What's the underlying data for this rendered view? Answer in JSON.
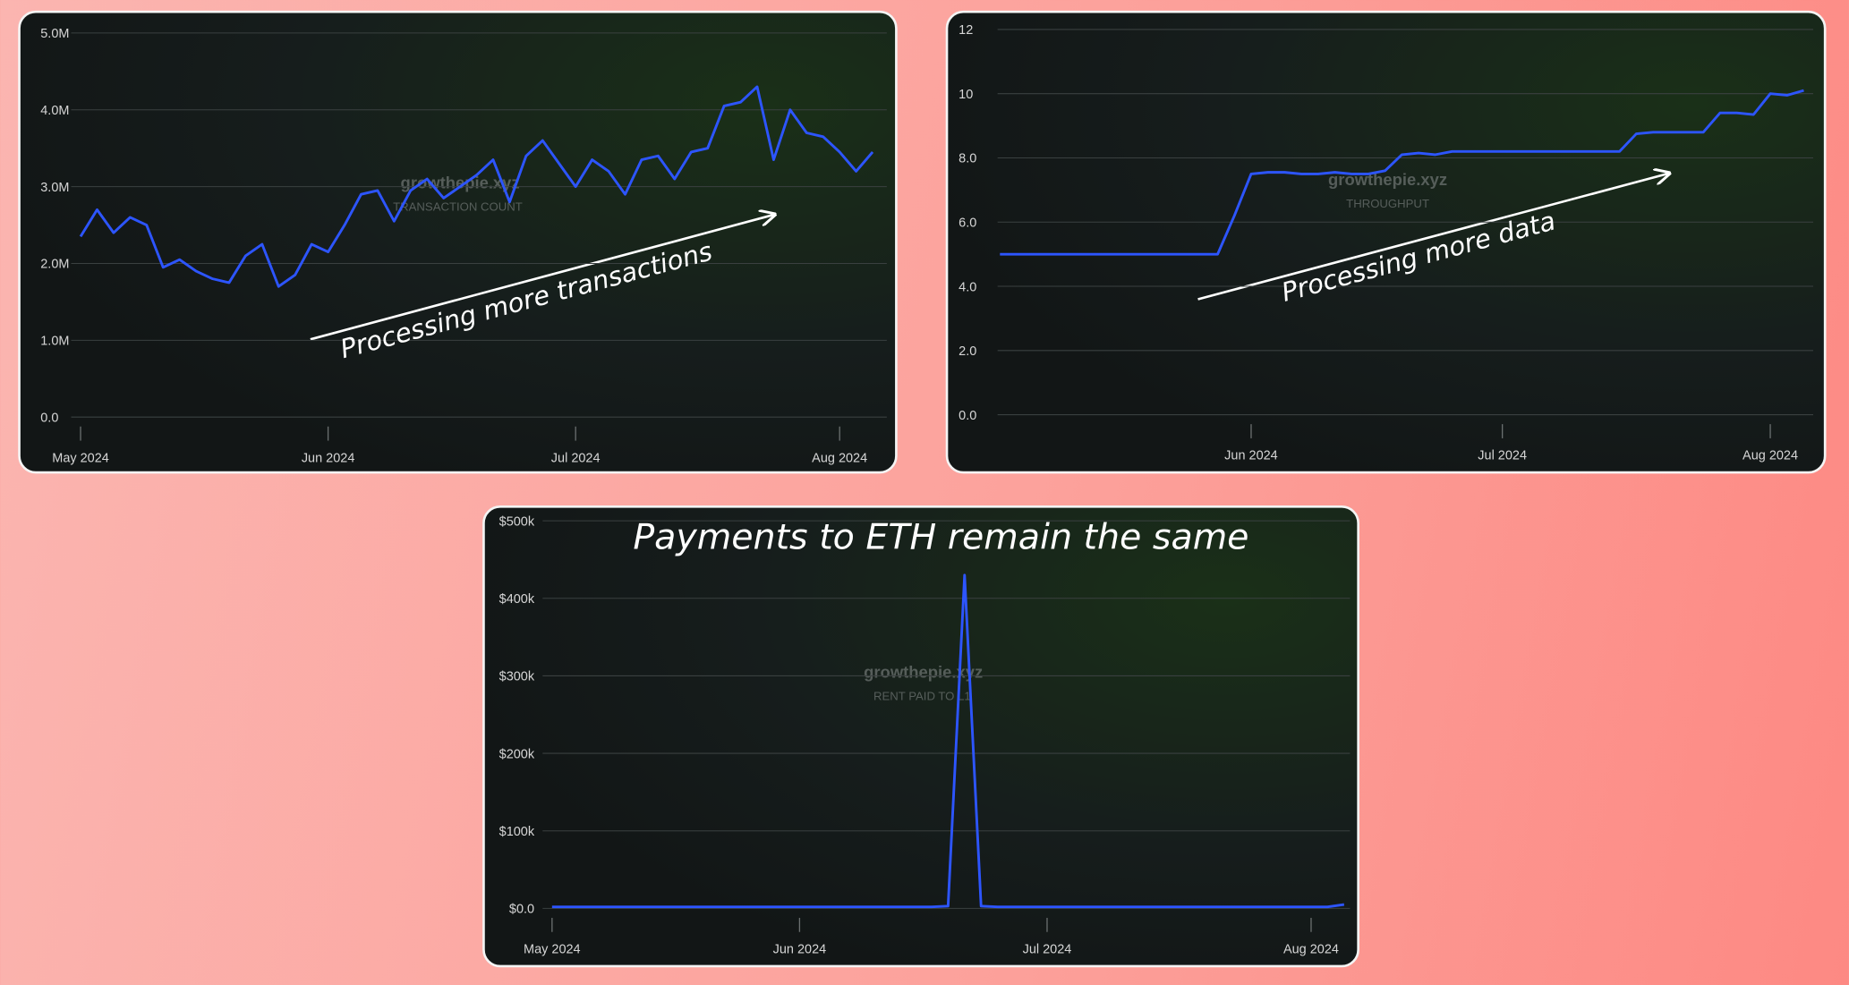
{
  "chart_data": [
    {
      "type": "line",
      "color": "#2d55ff",
      "annotation": "Processing more transactions",
      "watermark": "growthepie.xyz",
      "watermark_label": "TRANSACTION COUNT",
      "categories": [
        "May 2024",
        null,
        null,
        null,
        null,
        null,
        null,
        null,
        null,
        null,
        null,
        null,
        null,
        null,
        null,
        "Jun 2024",
        null,
        null,
        null,
        null,
        null,
        null,
        null,
        null,
        null,
        null,
        null,
        null,
        null,
        null,
        "Jul 2024",
        null,
        null,
        null,
        null,
        null,
        null,
        null,
        null,
        null,
        null,
        null,
        null,
        null,
        null,
        null,
        "Aug 2024",
        null,
        null
      ],
      "values": [
        2.35,
        2.7,
        2.4,
        2.6,
        2.5,
        1.95,
        2.05,
        1.9,
        1.8,
        1.75,
        2.1,
        2.25,
        1.7,
        1.85,
        2.25,
        2.15,
        2.5,
        2.9,
        2.95,
        2.55,
        2.95,
        3.1,
        2.85,
        3.0,
        3.15,
        3.35,
        2.8,
        3.4,
        3.6,
        3.3,
        3.0,
        3.35,
        3.2,
        2.9,
        3.35,
        3.4,
        3.1,
        3.45,
        3.5,
        4.05,
        4.1,
        4.3,
        3.35,
        4.0,
        3.7,
        3.65,
        3.45,
        3.2,
        3.45
      ],
      "ylim": [
        0,
        5
      ],
      "yticks": [
        {
          "value": 0,
          "label": "0.0"
        },
        {
          "value": 1,
          "label": "1.0M"
        },
        {
          "value": 2,
          "label": "2.0M"
        },
        {
          "value": 3,
          "label": "3.0M"
        },
        {
          "value": 4,
          "label": "4.0M"
        },
        {
          "value": 5,
          "label": "5.0M"
        }
      ],
      "grid": true
    },
    {
      "type": "line",
      "color": "#2d55ff",
      "annotation": "Processing more data",
      "watermark": "growthepie.xyz",
      "watermark_label": "THROUGHPUT",
      "categories": [
        null,
        null,
        null,
        null,
        null,
        null,
        null,
        null,
        null,
        null,
        null,
        null,
        null,
        null,
        null,
        "Jun 2024",
        null,
        null,
        null,
        null,
        null,
        null,
        null,
        null,
        null,
        null,
        null,
        null,
        null,
        null,
        "Jul 2024",
        null,
        null,
        null,
        null,
        null,
        null,
        null,
        null,
        null,
        null,
        null,
        null,
        null,
        null,
        null,
        "Aug 2024",
        null,
        null
      ],
      "values": [
        5.0,
        5.0,
        5.0,
        5.0,
        5.0,
        5.0,
        5.0,
        5.0,
        5.0,
        5.0,
        5.0,
        5.0,
        5.0,
        5.0,
        6.2,
        7.5,
        7.55,
        7.55,
        7.5,
        7.5,
        7.55,
        7.5,
        7.5,
        7.6,
        8.1,
        8.15,
        8.1,
        8.2,
        8.2,
        8.2,
        8.2,
        8.2,
        8.2,
        8.2,
        8.2,
        8.2,
        8.2,
        8.2,
        8.75,
        8.8,
        8.8,
        8.8,
        8.8,
        9.4,
        9.4,
        9.35,
        10.0,
        9.95,
        10.1
      ],
      "ylim": [
        0,
        12
      ],
      "yticks": [
        {
          "value": 0,
          "label": "0.0"
        },
        {
          "value": 2,
          "label": "2.0"
        },
        {
          "value": 4,
          "label": "4.0"
        },
        {
          "value": 6,
          "label": "6.0"
        },
        {
          "value": 8,
          "label": "8.0"
        },
        10,
        12
      ],
      "grid": true
    },
    {
      "type": "line",
      "color": "#2d55ff",
      "title": "Payments to ETH remain the same",
      "watermark": "growthepie.xyz",
      "watermark_label": "RENT PAID TO L1",
      "categories": [
        "May 2024",
        null,
        null,
        null,
        null,
        null,
        null,
        null,
        null,
        null,
        null,
        null,
        null,
        null,
        null,
        "Jun 2024",
        null,
        null,
        null,
        null,
        null,
        null,
        null,
        null,
        null,
        null,
        null,
        null,
        null,
        null,
        "Jul 2024",
        null,
        null,
        null,
        null,
        null,
        null,
        null,
        null,
        null,
        null,
        null,
        null,
        null,
        null,
        null,
        "Aug 2024",
        null,
        null
      ],
      "values": [
        2000,
        2000,
        2000,
        2000,
        2000,
        2000,
        2000,
        2000,
        2000,
        2000,
        2000,
        2000,
        2000,
        2000,
        2000,
        2000,
        2000,
        2000,
        2000,
        2000,
        2000,
        2000,
        2000,
        2000,
        3000,
        430000,
        3000,
        2000,
        2000,
        2000,
        2000,
        2000,
        2000,
        2000,
        2000,
        2000,
        2000,
        2000,
        2000,
        2000,
        2000,
        2000,
        2000,
        2000,
        2000,
        2000,
        2000,
        2000,
        5000
      ],
      "ylim": [
        0,
        500000
      ],
      "yticks": [
        {
          "value": 0,
          "label": "$0.0"
        },
        {
          "value": 100000,
          "label": "$100k"
        },
        {
          "value": 200000,
          "label": "$200k"
        },
        {
          "value": 300000,
          "label": "$300k"
        },
        {
          "value": 400000,
          "label": "$400k"
        },
        {
          "value": 500000,
          "label": "$500k"
        }
      ],
      "grid": true
    }
  ]
}
